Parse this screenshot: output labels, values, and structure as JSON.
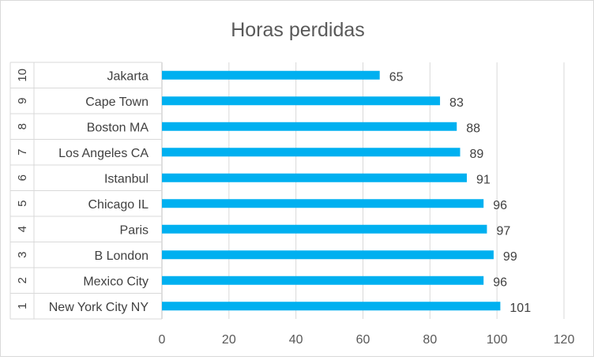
{
  "chart_data": {
    "type": "bar",
    "orientation": "horizontal",
    "title": "Horas perdidas",
    "xlabel": "",
    "ylabel": "",
    "xlim": [
      0,
      120
    ],
    "xticks": [
      0,
      20,
      40,
      60,
      80,
      100,
      120
    ],
    "grid": "vertical",
    "legend": "none",
    "bar_color": "#00B0F0",
    "categories": [
      {
        "rank": "1",
        "name": "New York City NY",
        "value": 101
      },
      {
        "rank": "2",
        "name": "Mexico City",
        "value": 96
      },
      {
        "rank": "3",
        "name": "B London",
        "value": 99
      },
      {
        "rank": "4",
        "name": "Paris",
        "value": 97
      },
      {
        "rank": "5",
        "name": "Chicago IL",
        "value": 96
      },
      {
        "rank": "6",
        "name": "Istanbul",
        "value": 91
      },
      {
        "rank": "7",
        "name": "Los Angeles CA",
        "value": 89
      },
      {
        "rank": "8",
        "name": "Boston MA",
        "value": 88
      },
      {
        "rank": "9",
        "name": "Cape Town",
        "value": 83
      },
      {
        "rank": "10",
        "name": "Jakarta",
        "value": 65
      }
    ]
  }
}
